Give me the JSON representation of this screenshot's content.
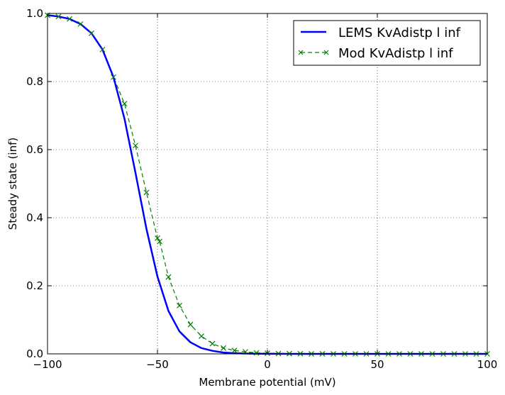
{
  "chart_data": {
    "type": "line",
    "xlabel": "Membrane potential (mV)",
    "ylabel": "Steady state (inf)",
    "xlim": [
      -100,
      100
    ],
    "ylim": [
      0.0,
      1.0
    ],
    "xticks": [
      -100,
      -50,
      0,
      50,
      100
    ],
    "xtick_labels": [
      "−100",
      "−50",
      "0",
      "50",
      "100"
    ],
    "yticks": [
      0.0,
      0.2,
      0.4,
      0.6,
      0.8,
      1.0
    ],
    "ytick_labels": [
      "0.0",
      "0.2",
      "0.4",
      "0.6",
      "0.8",
      "1.0"
    ],
    "grid": true,
    "legend_position": "top-right",
    "series": [
      {
        "name": "LEMS KvAdistp l inf",
        "style": "solid",
        "color": "#0000ff",
        "x": [
          -100,
          -95,
          -90,
          -85,
          -80,
          -75,
          -70,
          -65,
          -60,
          -55,
          -50,
          -45,
          -40,
          -35,
          -30,
          -25,
          -20,
          -15,
          -10,
          -5,
          0,
          5,
          10,
          15,
          20,
          25,
          30,
          35,
          40,
          45,
          50,
          55,
          60,
          65,
          70,
          75,
          80,
          85,
          90,
          95,
          100
        ],
        "y": [
          0.995,
          0.991,
          0.984,
          0.969,
          0.942,
          0.894,
          0.813,
          0.691,
          0.532,
          0.367,
          0.227,
          0.126,
          0.066,
          0.034,
          0.017,
          0.009,
          0.004,
          0.002,
          0.001,
          0.0006,
          0.0003,
          0.0002,
          0.0001,
          0.0,
          0.0,
          0.0,
          0.0,
          0.0,
          0.0,
          0.0,
          0.0,
          0.0,
          0.0,
          0.0,
          0.0,
          0.0,
          0.0,
          0.0,
          0.0,
          0.0,
          0.0
        ]
      },
      {
        "name": "Mod KvAdistp l inf",
        "style": "dashed-x",
        "color": "#008000",
        "x": [
          -100,
          -95,
          -90,
          -85,
          -80,
          -75,
          -70,
          -65,
          -60,
          -55,
          -50,
          -49,
          -45,
          -40,
          -35,
          -30,
          -25,
          -20,
          -15,
          -10,
          -5,
          0,
          5,
          10,
          15,
          20,
          25,
          30,
          35,
          40,
          45,
          50,
          55,
          60,
          65,
          70,
          75,
          80,
          85,
          90,
          95,
          100
        ],
        "y": [
          0.995,
          0.991,
          0.984,
          0.969,
          0.942,
          0.894,
          0.813,
          0.735,
          0.612,
          0.474,
          0.34,
          0.33,
          0.226,
          0.142,
          0.086,
          0.052,
          0.03,
          0.017,
          0.01,
          0.006,
          0.003,
          0.002,
          0.001,
          0.0006,
          0.0003,
          0.0002,
          0.0001,
          0.0,
          0.0,
          0.0,
          0.0,
          0.0,
          0.0,
          0.0,
          0.0,
          0.0,
          0.0,
          0.0,
          0.0,
          0.0,
          0.0,
          0.0
        ]
      }
    ]
  }
}
